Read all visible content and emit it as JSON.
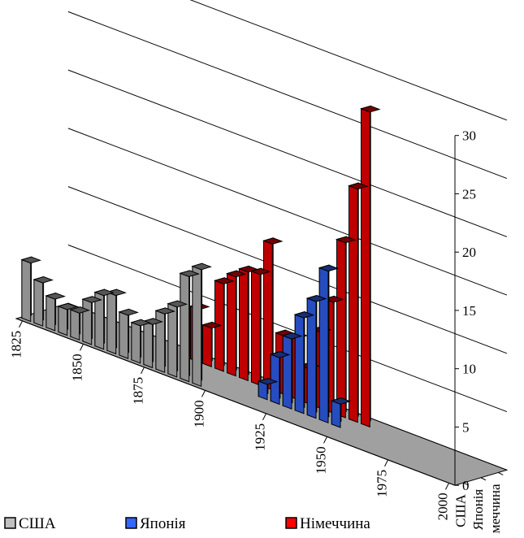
{
  "chart_data": {
    "type": "bar",
    "categories": [
      "1825",
      "1830",
      "1835",
      "1840",
      "1845",
      "1850",
      "1855",
      "1860",
      "1865",
      "1870",
      "1875",
      "1880",
      "1885",
      "1890",
      "1895",
      "1900",
      "1905",
      "1910",
      "1915",
      "1920",
      "1925",
      "1930",
      "1935",
      "1940",
      "1945",
      "1950",
      "1955",
      "1960",
      "1965",
      "1970",
      "1975",
      "1980",
      "1985",
      "1990",
      "1995",
      "2000"
    ],
    "x_tick_labels": [
      "1825",
      "1850",
      "1875",
      "1900",
      "1925",
      "1950",
      "1975",
      "2000"
    ],
    "y_tick_labels": [
      "0",
      "5",
      "10",
      "15",
      "20",
      "25",
      "30"
    ],
    "depth_labels": [
      "США",
      "Японія",
      "Німеччина"
    ],
    "ylim": [
      0,
      30
    ],
    "title": "",
    "xlabel": "",
    "ylabel": "",
    "grid": true,
    "legend_position": "bottom",
    "series": [
      {
        "name": "США",
        "color": "#c0c0c0",
        "values": [
          5,
          3.7,
          2.7,
          2.2,
          2.3,
          3.6,
          4.6,
          5,
          3.7,
          3.2,
          3.7,
          5,
          6,
          9,
          10,
          0,
          0,
          0,
          0,
          0,
          0,
          0,
          0,
          0,
          0,
          0,
          0,
          0,
          0,
          0,
          0,
          0,
          0,
          0,
          0,
          0
        ]
      },
      {
        "name": "Японія",
        "color": "#3366ff",
        "values": [
          0,
          0,
          0,
          0,
          0,
          0,
          0,
          0,
          0,
          0,
          0,
          0,
          0,
          0,
          0,
          0,
          0,
          0,
          1.3,
          4,
          6,
          8.2,
          10,
          13,
          2,
          0,
          0,
          0,
          0,
          0,
          0,
          0,
          0,
          0,
          0,
          0
        ]
      },
      {
        "name": "Німеччина",
        "color": "#ff0000",
        "values": [
          0,
          0,
          0,
          0,
          0,
          0,
          0,
          0,
          0,
          0,
          0,
          4.5,
          3.3,
          7.5,
          8.5,
          9.3,
          9.5,
          12.5,
          5,
          5.2,
          3,
          6.5,
          9.5,
          15,
          20,
          27,
          0,
          0,
          0,
          0,
          0,
          0,
          0,
          0,
          0,
          0
        ]
      }
    ]
  }
}
